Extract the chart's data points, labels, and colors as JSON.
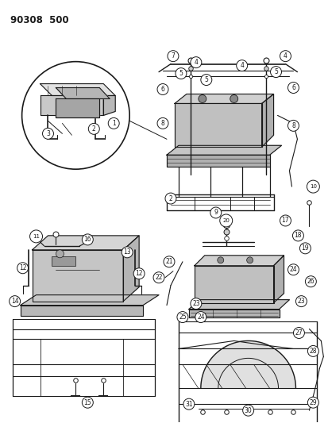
{
  "title": "90308  500",
  "bg": "#ffffff",
  "lc": "#1a1a1a",
  "figsize": [
    4.14,
    5.33
  ],
  "dpi": 100
}
